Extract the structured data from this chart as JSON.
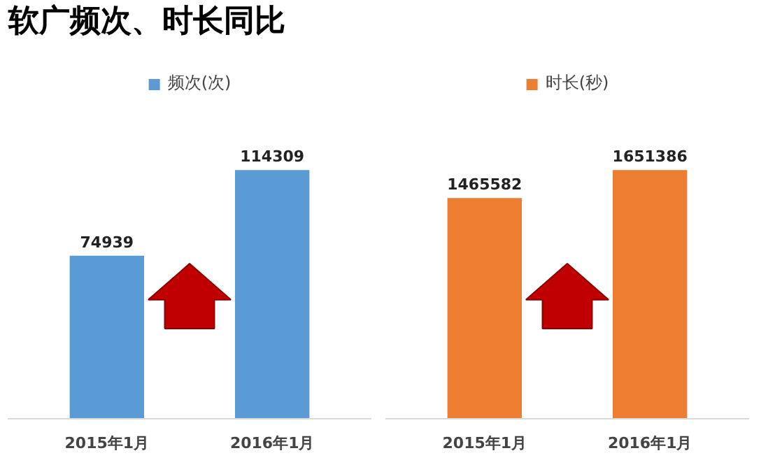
{
  "chart_data": [
    {
      "type": "bar",
      "title": "软广频次、时长同比",
      "categories": [
        "2015年1月",
        "2016年1月"
      ],
      "series": [
        {
          "name": "频次(次)",
          "color": "#5b9bd5",
          "values": [
            74939,
            114309
          ]
        }
      ],
      "data_labels": true,
      "legend": "top",
      "grid": false,
      "tick_labels": "x"
    },
    {
      "type": "bar",
      "categories": [
        "2015年1月",
        "2016年1月"
      ],
      "series": [
        {
          "name": "时长(秒)",
          "color": "#ed7d31",
          "values": [
            1465582,
            1651386
          ]
        }
      ],
      "data_labels": true,
      "legend": "top",
      "grid": false,
      "tick_labels": "x"
    }
  ]
}
